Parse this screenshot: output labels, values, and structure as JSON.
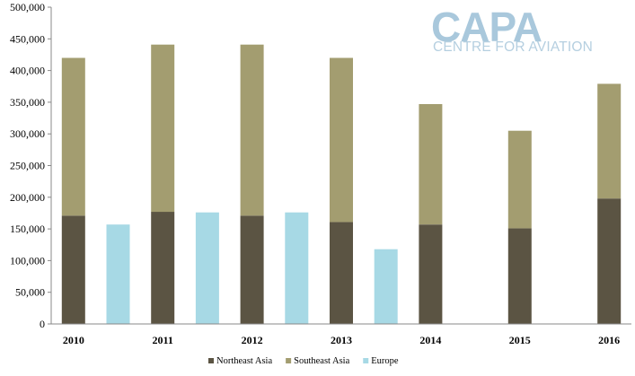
{
  "logo": {
    "main": "CAPA",
    "sub": "CENTRE FOR AVIATION"
  },
  "chart_data": {
    "type": "bar",
    "stacked": true,
    "categories": [
      "2010",
      "",
      "2011",
      "",
      "2012",
      "",
      "2013",
      "",
      "2014",
      "",
      "2015",
      "",
      "2016"
    ],
    "series": [
      {
        "name": "Northeast Asia",
        "color": "#5b5443",
        "stack": "asia",
        "values": [
          171000,
          null,
          177000,
          null,
          171000,
          null,
          161000,
          null,
          157000,
          null,
          151000,
          null,
          198000
        ]
      },
      {
        "name": "Southeast Asia",
        "color": "#a39d70",
        "stack": "asia",
        "values": [
          249000,
          null,
          264000,
          null,
          270000,
          null,
          259000,
          null,
          190000,
          null,
          154000,
          null,
          181000
        ]
      },
      {
        "name": "Europe",
        "color": "#a7d9e5",
        "stack": "europe",
        "values": [
          null,
          157000,
          null,
          176000,
          null,
          176000,
          null,
          118000,
          null,
          null,
          null,
          null,
          null
        ]
      }
    ],
    "ylim": [
      0,
      500000
    ],
    "yticks": [
      "0",
      "50,000",
      "100,000",
      "150,000",
      "200,000",
      "250,000",
      "300,000",
      "350,000",
      "400,000",
      "450,000",
      "500,000"
    ],
    "grid": false,
    "legend": "bottom"
  }
}
